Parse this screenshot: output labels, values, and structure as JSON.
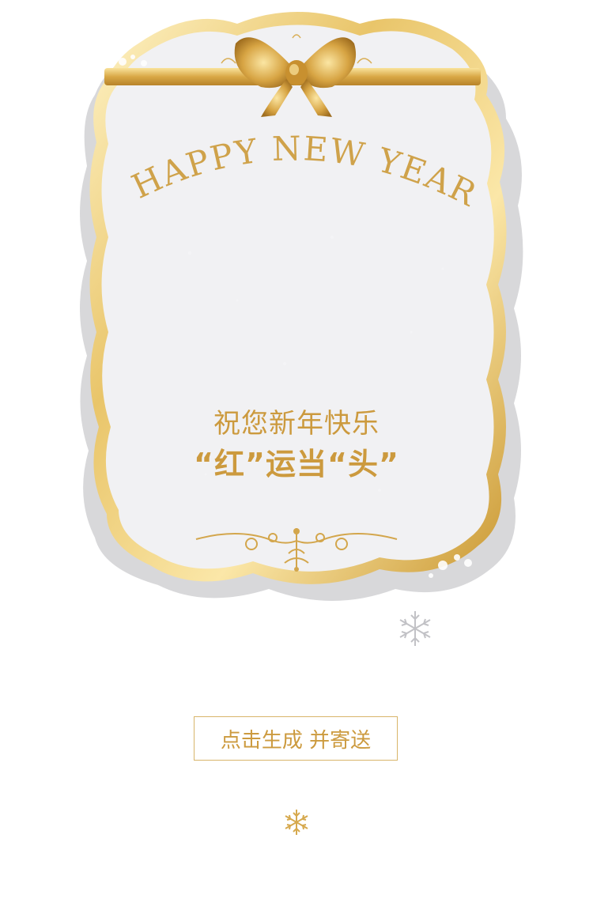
{
  "card": {
    "heading": "HAPPY NEW YEAR",
    "greeting_line1": "祝您新年快乐",
    "greeting_line2": "“红”运当“头”"
  },
  "actions": {
    "generate_label": "点击生成 并寄送"
  },
  "colors": {
    "gold": "#cc9a3e",
    "gold_light": "#f2dc9b",
    "card_bg": "#f1f1f3",
    "button_border": "#d8b56a"
  },
  "icons": {
    "bow": "gold-bow-icon",
    "ornament": "scroll-ornament-icon",
    "snowflake": "snowflake-icon"
  }
}
